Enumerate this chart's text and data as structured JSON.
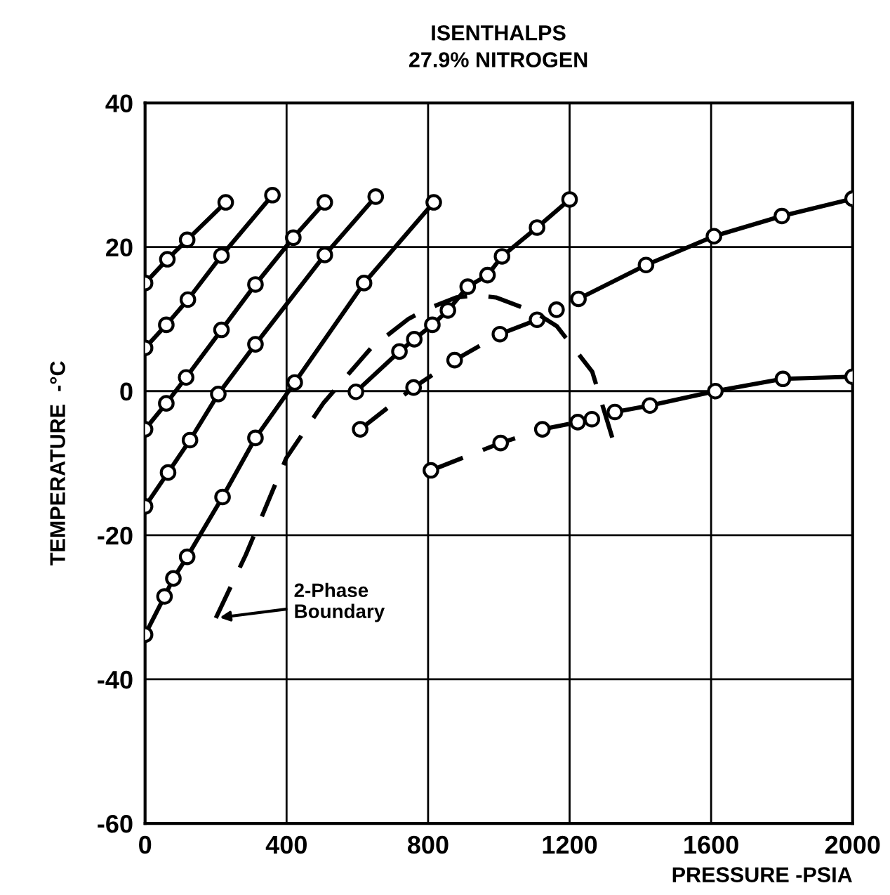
{
  "chart_data": {
    "type": "line",
    "title": "ISENTHALPS",
    "subtitle": "27.9% NITROGEN",
    "xlabel": "PRESSURE -PSIA",
    "ylabel": "TEMPERATURE  -°C",
    "xlim": [
      0,
      2000
    ],
    "ylim": [
      -60,
      40
    ],
    "xticks": [
      0,
      400,
      800,
      1200,
      1600,
      2000
    ],
    "yticks": [
      -60,
      -40,
      -20,
      0,
      20,
      40
    ],
    "grid": true,
    "legend": false,
    "series": [
      {
        "color": "#000000",
        "marker": "circle",
        "line_style": "solid",
        "x": [
          0,
          63,
          119,
          228
        ],
        "values": [
          15,
          18.3,
          21,
          26.2
        ]
      },
      {
        "color": "#000000",
        "marker": "circle",
        "line_style": "solid",
        "x": [
          0,
          60,
          121,
          216,
          360
        ],
        "values": [
          6,
          9.2,
          12.7,
          18.8,
          27.2
        ]
      },
      {
        "color": "#000000",
        "marker": "circle",
        "line_style": "solid",
        "x": [
          0,
          60,
          116,
          216,
          312,
          419,
          508
        ],
        "values": [
          -5.3,
          -1.7,
          1.9,
          8.5,
          14.8,
          21.3,
          26.2
        ]
      },
      {
        "color": "#000000",
        "marker": "circle",
        "line_style": "solid",
        "x": [
          0,
          65,
          127,
          207,
          312,
          508,
          652
        ],
        "values": [
          -16,
          -11.3,
          -6.8,
          -0.4,
          6.5,
          18.9,
          27
        ]
      },
      {
        "color": "#000000",
        "marker": "circle",
        "line_style": "solid",
        "x": [
          0,
          55,
          80,
          119,
          219,
          312,
          423,
          619,
          816
        ],
        "values": [
          -33.8,
          -28.5,
          -26,
          -23,
          -14.7,
          -6.5,
          1.2,
          15,
          26.2
        ]
      },
      {
        "color": "#000000",
        "marker": "circle",
        "line_style": "solid",
        "x": [
          596,
          719,
          761,
          812,
          856,
          912,
          968,
          1009,
          1108,
          1200
        ],
        "values": [
          -0.1,
          5.5,
          7.2,
          9.2,
          11.2,
          14.5,
          16.1,
          18.7,
          22.7,
          26.6
        ]
      },
      {
        "color": "#000000",
        "marker": "circle",
        "line_style": "dashed",
        "x": [
          608,
          759,
          875,
          1003,
          1108,
          1163
        ],
        "values": [
          -5.3,
          0.5,
          4.3,
          7.9,
          9.9,
          11.3
        ]
      },
      {
        "color": "#000000",
        "marker": "circle",
        "line_style": "solid",
        "x": [
          1225,
          1416,
          1608,
          1800,
          2000
        ],
        "values": [
          12.8,
          17.5,
          21.5,
          24.3,
          26.7
        ]
      },
      {
        "color": "#000000",
        "marker": "circle",
        "line_style": "dashed",
        "x": [
          808,
          1005,
          1123,
          1223,
          1263
        ],
        "values": [
          -11,
          -7.2,
          -5.3,
          -4.3,
          -3.9
        ]
      },
      {
        "color": "#000000",
        "marker": "circle",
        "line_style": "solid",
        "x": [
          1328,
          1427,
          1612,
          1803,
          2000
        ],
        "values": [
          -2.9,
          -2,
          0,
          1.7,
          2
        ]
      },
      {
        "color": "#000000",
        "marker": "none",
        "line_style": "dashed",
        "x": [
          200,
          285,
          399,
          505,
          639,
          744,
          792,
          880,
          939,
          992,
          1100,
          1164,
          1264,
          1324
        ],
        "values": [
          -31.5,
          -22.7,
          -9.3,
          -1.6,
          6,
          10,
          11.3,
          13,
          13.3,
          13,
          11,
          9,
          2.7,
          -7
        ]
      }
    ],
    "annotations": [
      {
        "text": "2-Phase\nBoundary",
        "x": 200,
        "y": -31.5
      }
    ]
  }
}
